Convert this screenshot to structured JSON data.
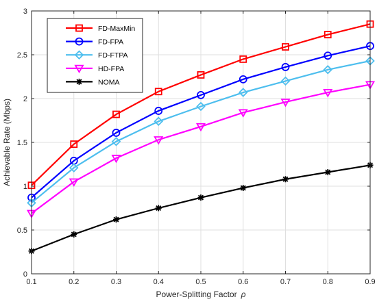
{
  "chart_data": {
    "type": "line",
    "title": "",
    "xlabel": "Power-Splitting Factor",
    "xlabel_symbol": "ρ",
    "ylabel": "Achievable Rate (Mbps)",
    "xlim": [
      0.1,
      0.9
    ],
    "ylim": [
      0,
      3
    ],
    "xticks": [
      "0.1",
      "0.2",
      "0.3",
      "0.4",
      "0.5",
      "0.6",
      "0.7",
      "0.8",
      "0.9"
    ],
    "yticks": [
      "0",
      "0.5",
      "1",
      "1.5",
      "2",
      "2.5",
      "3"
    ],
    "grid": true,
    "legend_position": "top-left",
    "x": [
      0.1,
      0.2,
      0.3,
      0.4,
      0.5,
      0.6,
      0.7,
      0.8,
      0.9
    ],
    "series": [
      {
        "name": "FD-MaxMin",
        "color": "#ff0000",
        "marker": "square",
        "values": [
          1.01,
          1.48,
          1.82,
          2.08,
          2.27,
          2.45,
          2.59,
          2.73,
          2.85
        ]
      },
      {
        "name": "FD-FPA",
        "color": "#0000ff",
        "marker": "circle",
        "values": [
          0.87,
          1.29,
          1.61,
          1.86,
          2.04,
          2.22,
          2.36,
          2.49,
          2.6
        ]
      },
      {
        "name": "FD-FTPA",
        "color": "#4dbeee",
        "marker": "diamond",
        "values": [
          0.81,
          1.21,
          1.51,
          1.74,
          1.91,
          2.07,
          2.2,
          2.33,
          2.43
        ]
      },
      {
        "name": "HD-FPA",
        "color": "#ff00ff",
        "marker": "triangle-down",
        "values": [
          0.69,
          1.05,
          1.32,
          1.53,
          1.68,
          1.84,
          1.96,
          2.07,
          2.16
        ]
      },
      {
        "name": "NOMA",
        "color": "#000000",
        "marker": "asterisk",
        "values": [
          0.26,
          0.45,
          0.62,
          0.75,
          0.87,
          0.98,
          1.08,
          1.16,
          1.24
        ]
      }
    ]
  }
}
